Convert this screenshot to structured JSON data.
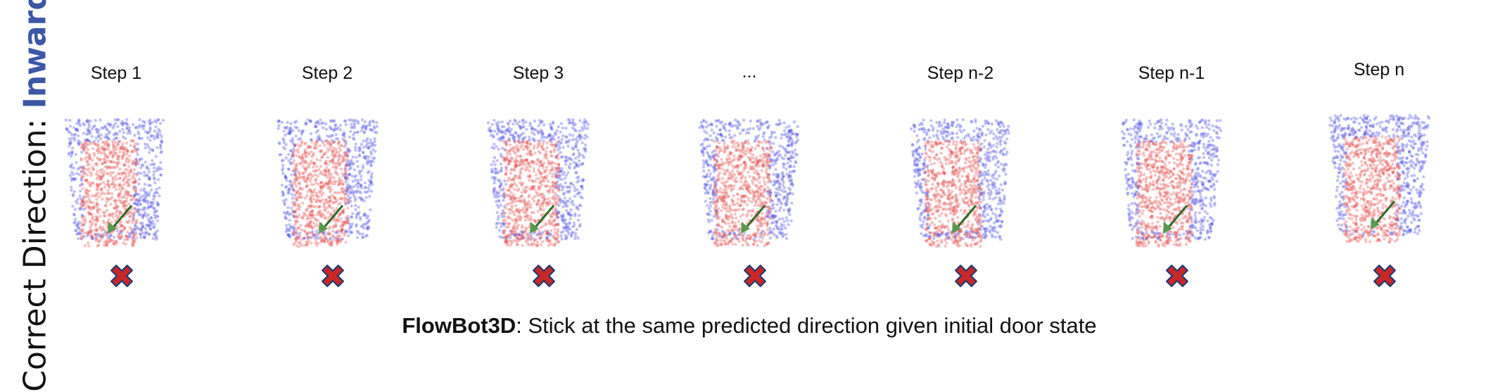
{
  "side_label": {
    "prefix": "Correct Direction: ",
    "highlight": "Inward"
  },
  "steps": [
    {
      "label": "Step 1"
    },
    {
      "label": "Step 2"
    },
    {
      "label": "Step 3"
    },
    {
      "label": "..."
    },
    {
      "label": "Step n-2"
    },
    {
      "label": "Step n-1"
    },
    {
      "label": "Step n"
    }
  ],
  "caption": {
    "method": "FlowBot3D",
    "text": ": Stick at the same predicted direction given initial door state"
  },
  "colors": {
    "frame_points": "#5050e6",
    "door_points": "#e65555",
    "arrow": "#5a9a50",
    "cross_fill": "#c62828",
    "cross_stroke": "#233a6e",
    "highlight": "#3b57a6"
  },
  "icons": {
    "fail": "cross-mark-icon",
    "flow": "flow-arrow-icon"
  }
}
